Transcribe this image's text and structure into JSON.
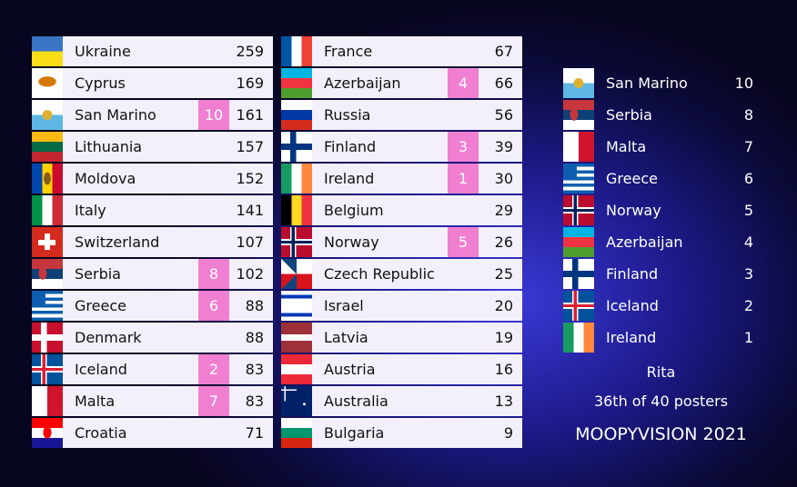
{
  "scoreboard": {
    "columns": [
      {
        "rows": [
          {
            "country": "Ukraine",
            "total": 259
          },
          {
            "country": "Cyprus",
            "total": 169
          },
          {
            "country": "San Marino",
            "points": 10,
            "total": 161
          },
          {
            "country": "Lithuania",
            "total": 157
          },
          {
            "country": "Moldova",
            "total": 152
          },
          {
            "country": "Italy",
            "total": 141
          },
          {
            "country": "Switzerland",
            "total": 107
          },
          {
            "country": "Serbia",
            "points": 8,
            "total": 102
          },
          {
            "country": "Greece",
            "points": 6,
            "total": 88
          },
          {
            "country": "Denmark",
            "total": 88
          },
          {
            "country": "Iceland",
            "points": 2,
            "total": 83
          },
          {
            "country": "Malta",
            "points": 7,
            "total": 83
          },
          {
            "country": "Croatia",
            "total": 71
          }
        ]
      },
      {
        "rows": [
          {
            "country": "France",
            "total": 67
          },
          {
            "country": "Azerbaijan",
            "points": 4,
            "total": 66
          },
          {
            "country": "Russia",
            "total": 56
          },
          {
            "country": "Finland",
            "points": 3,
            "total": 39
          },
          {
            "country": "Ireland",
            "points": 1,
            "total": 30
          },
          {
            "country": "Belgium",
            "total": 29
          },
          {
            "country": "Norway",
            "points": 5,
            "total": 26
          },
          {
            "country": "Czech Republic",
            "total": 25
          },
          {
            "country": "Israel",
            "total": 20
          },
          {
            "country": "Latvia",
            "total": 19
          },
          {
            "country": "Austria",
            "total": 16
          },
          {
            "country": "Australia",
            "total": 13
          },
          {
            "country": "Bulgaria",
            "total": 9
          }
        ]
      }
    ]
  },
  "votes": [
    {
      "country": "San Marino",
      "points": 10
    },
    {
      "country": "Serbia",
      "points": 8
    },
    {
      "country": "Malta",
      "points": 7
    },
    {
      "country": "Greece",
      "points": 6
    },
    {
      "country": "Norway",
      "points": 5
    },
    {
      "country": "Azerbaijan",
      "points": 4
    },
    {
      "country": "Finland",
      "points": 3
    },
    {
      "country": "Iceland",
      "points": 2
    },
    {
      "country": "Ireland",
      "points": 1
    }
  ],
  "voter": "Rita",
  "rank_text": "36th of 40 posters",
  "show_title": "MOOPYVISION 2021"
}
